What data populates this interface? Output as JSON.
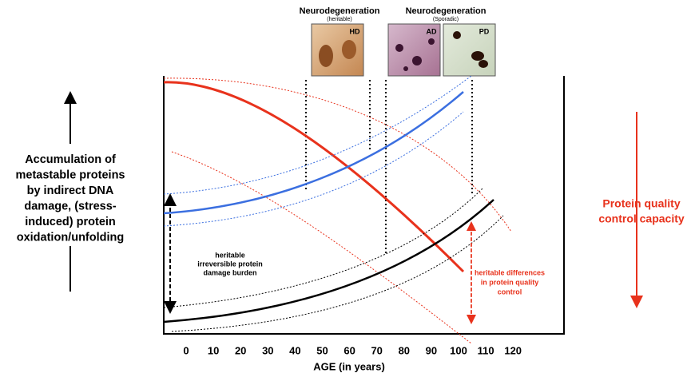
{
  "panels": [
    {
      "title": "Neurodegeneration",
      "subtitle": "(heritable)",
      "images": [
        "HD"
      ]
    },
    {
      "title": "Neurodegeneration",
      "subtitle": "(Sporadic)",
      "images": [
        "AD",
        "PD"
      ]
    }
  ],
  "left_label": [
    "Accumulation of",
    "metastable proteins",
    "by indirect DNA",
    "damage, (stress-",
    "induced) protein",
    "oxidation/unfolding"
  ],
  "right_label": [
    "Protein quality",
    "control capacity"
  ],
  "inner_label": [
    "heritable",
    "irreversible protein",
    "damage burden"
  ],
  "red_label": [
    "heritable differences",
    "in protein quality",
    "control"
  ],
  "x_axis": {
    "ticks": [
      "0",
      "10",
      "20",
      "30",
      "40",
      "50",
      "60",
      "70",
      "80",
      "90",
      "100",
      "110",
      "120"
    ],
    "title": "AGE (in years)"
  }
}
